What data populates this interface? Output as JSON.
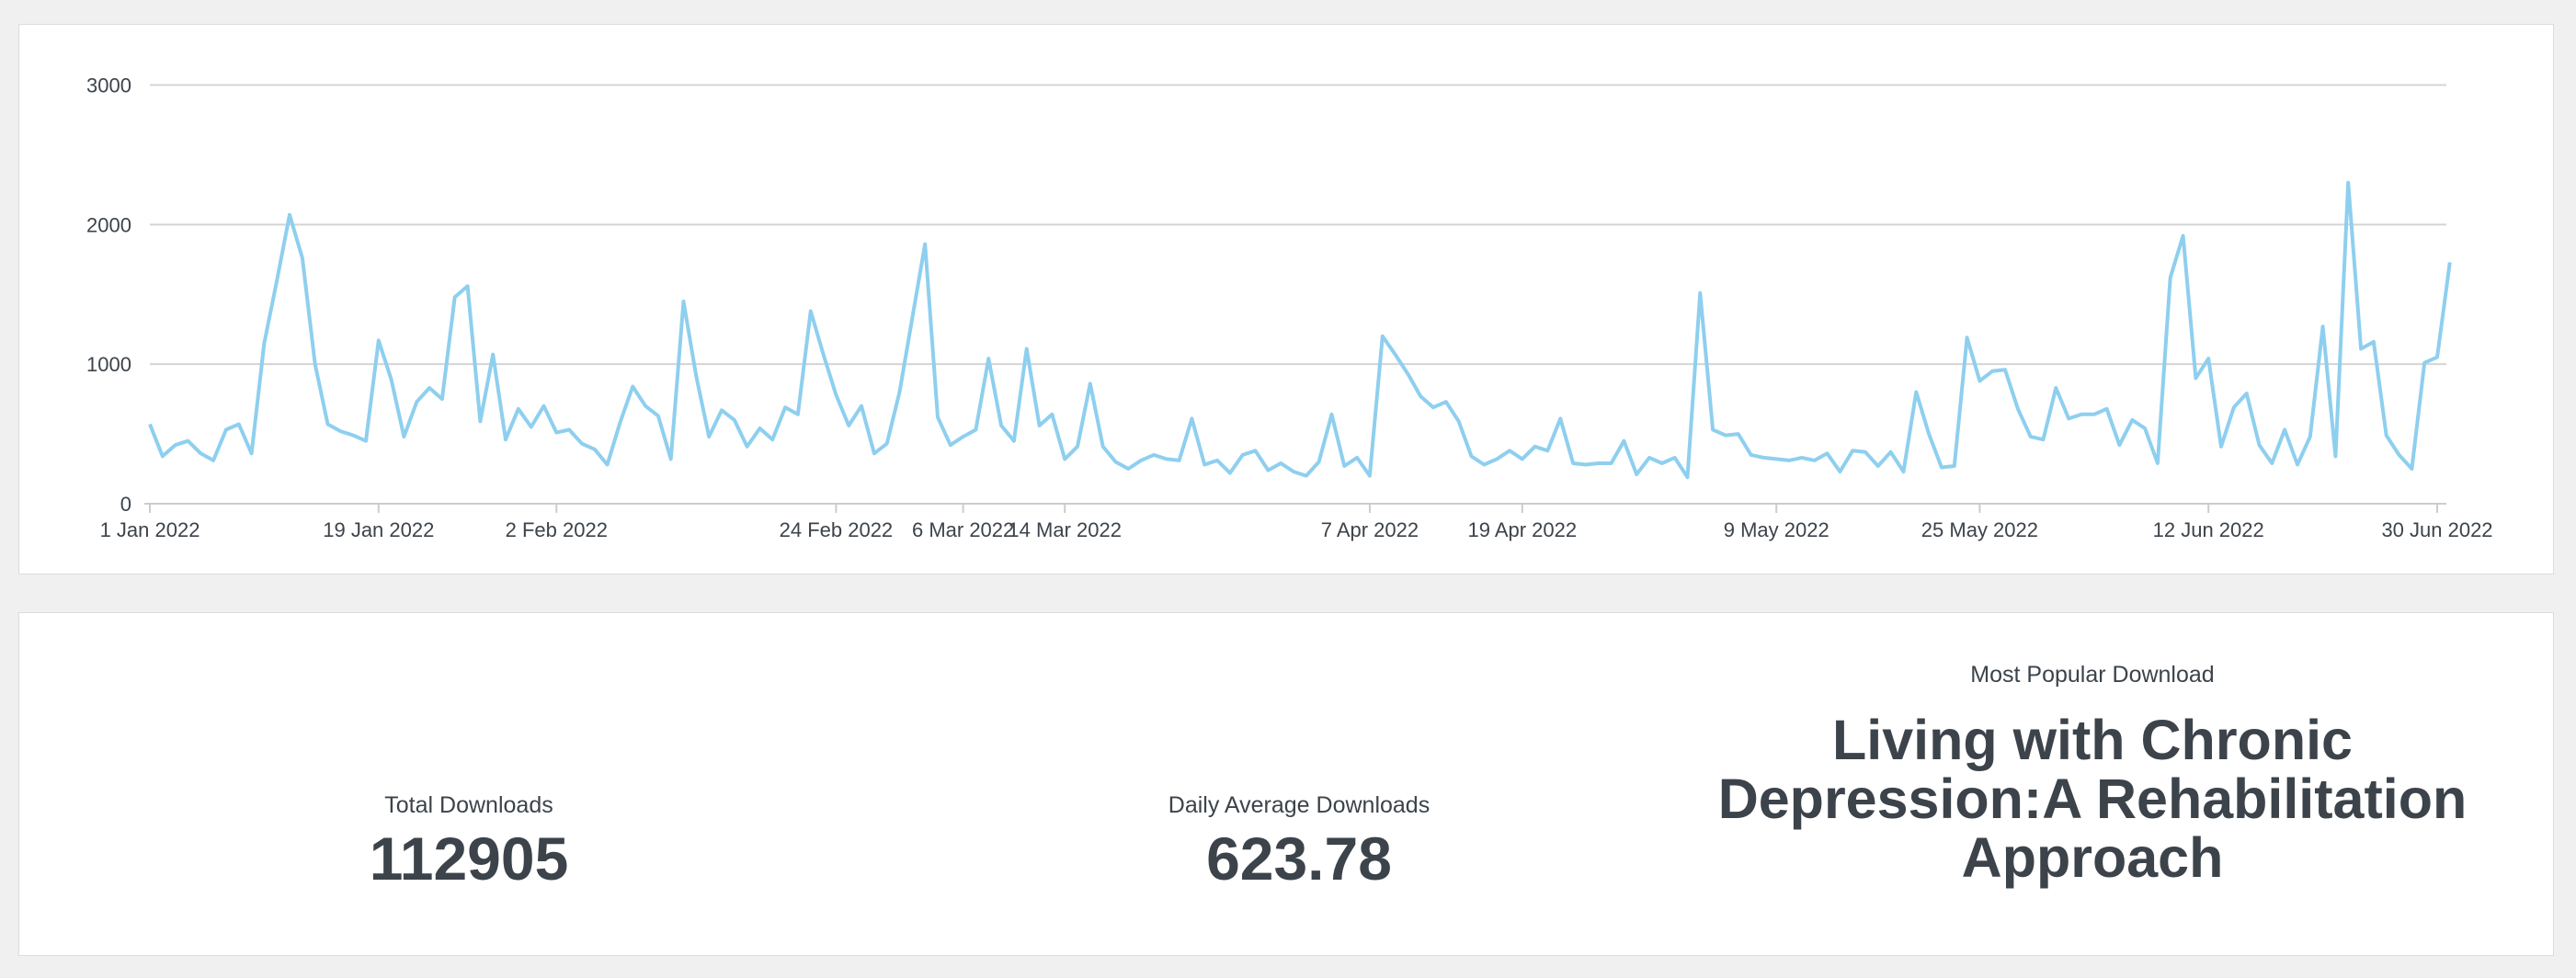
{
  "chart_data": {
    "type": "line",
    "title": "",
    "xlabel": "",
    "ylabel": "",
    "ylim": [
      0,
      3300
    ],
    "yticks": [
      0,
      1000,
      2000,
      3000
    ],
    "grid": true,
    "legend": "none",
    "line_color": "#8ecfef",
    "x_start": "2022-01-01",
    "x_end": "2022-06-30",
    "x_tick_labels": [
      {
        "date": "2022-01-01",
        "label": "1 Jan 2022"
      },
      {
        "date": "2022-01-19",
        "label": "19 Jan 2022"
      },
      {
        "date": "2022-02-02",
        "label": "2 Feb 2022"
      },
      {
        "date": "2022-02-24",
        "label": "24 Feb 2022"
      },
      {
        "date": "2022-03-06",
        "label": "6 Mar 2022"
      },
      {
        "date": "2022-03-14",
        "label": "14 Mar 2022"
      },
      {
        "date": "2022-04-07",
        "label": "7 Apr 2022"
      },
      {
        "date": "2022-04-19",
        "label": "19 Apr 2022"
      },
      {
        "date": "2022-05-09",
        "label": "9 May 2022"
      },
      {
        "date": "2022-05-25",
        "label": "25 May 2022"
      },
      {
        "date": "2022-06-12",
        "label": "12 Jun 2022"
      },
      {
        "date": "2022-06-30",
        "label": "30 Jun 2022"
      }
    ],
    "points": [
      [
        "2022-01-01",
        570
      ],
      [
        "2022-01-02",
        340
      ],
      [
        "2022-01-03",
        420
      ],
      [
        "2022-01-04",
        450
      ],
      [
        "2022-01-05",
        360
      ],
      [
        "2022-01-06",
        310
      ],
      [
        "2022-01-07",
        530
      ],
      [
        "2022-01-08",
        570
      ],
      [
        "2022-01-09",
        360
      ],
      [
        "2022-01-10",
        1150
      ],
      [
        "2022-01-11",
        1600
      ],
      [
        "2022-01-12",
        2070
      ],
      [
        "2022-01-13",
        1760
      ],
      [
        "2022-01-14",
        1000
      ],
      [
        "2022-01-15",
        570
      ],
      [
        "2022-01-16",
        520
      ],
      [
        "2022-01-17",
        490
      ],
      [
        "2022-01-18",
        450
      ],
      [
        "2022-01-19",
        1170
      ],
      [
        "2022-01-20",
        890
      ],
      [
        "2022-01-21",
        480
      ],
      [
        "2022-01-22",
        730
      ],
      [
        "2022-01-23",
        830
      ],
      [
        "2022-01-24",
        750
      ],
      [
        "2022-01-25",
        1480
      ],
      [
        "2022-01-26",
        1560
      ],
      [
        "2022-01-27",
        590
      ],
      [
        "2022-01-28",
        1070
      ],
      [
        "2022-01-29",
        460
      ],
      [
        "2022-01-30",
        680
      ],
      [
        "2022-01-31",
        550
      ],
      [
        "2022-02-01",
        700
      ],
      [
        "2022-02-02",
        510
      ],
      [
        "2022-02-03",
        530
      ],
      [
        "2022-02-04",
        430
      ],
      [
        "2022-02-05",
        390
      ],
      [
        "2022-02-06",
        280
      ],
      [
        "2022-02-07",
        580
      ],
      [
        "2022-02-08",
        840
      ],
      [
        "2022-02-09",
        700
      ],
      [
        "2022-02-10",
        630
      ],
      [
        "2022-02-11",
        320
      ],
      [
        "2022-02-12",
        1450
      ],
      [
        "2022-02-13",
        910
      ],
      [
        "2022-02-14",
        480
      ],
      [
        "2022-02-15",
        670
      ],
      [
        "2022-02-16",
        600
      ],
      [
        "2022-02-17",
        410
      ],
      [
        "2022-02-18",
        540
      ],
      [
        "2022-02-19",
        460
      ],
      [
        "2022-02-20",
        690
      ],
      [
        "2022-02-21",
        640
      ],
      [
        "2022-02-22",
        1380
      ],
      [
        "2022-02-23",
        1070
      ],
      [
        "2022-02-24",
        780
      ],
      [
        "2022-02-25",
        560
      ],
      [
        "2022-02-26",
        700
      ],
      [
        "2022-02-27",
        360
      ],
      [
        "2022-02-28",
        430
      ],
      [
        "2022-03-01",
        800
      ],
      [
        "2022-03-02",
        1330
      ],
      [
        "2022-03-03",
        1860
      ],
      [
        "2022-03-04",
        620
      ],
      [
        "2022-03-05",
        420
      ],
      [
        "2022-03-06",
        480
      ],
      [
        "2022-03-07",
        530
      ],
      [
        "2022-03-08",
        1040
      ],
      [
        "2022-03-09",
        560
      ],
      [
        "2022-03-10",
        450
      ],
      [
        "2022-03-11",
        1110
      ],
      [
        "2022-03-12",
        560
      ],
      [
        "2022-03-13",
        640
      ],
      [
        "2022-03-14",
        320
      ],
      [
        "2022-03-15",
        410
      ],
      [
        "2022-03-16",
        860
      ],
      [
        "2022-03-17",
        410
      ],
      [
        "2022-03-18",
        300
      ],
      [
        "2022-03-19",
        250
      ],
      [
        "2022-03-20",
        310
      ],
      [
        "2022-03-21",
        350
      ],
      [
        "2022-03-22",
        320
      ],
      [
        "2022-03-23",
        310
      ],
      [
        "2022-03-24",
        610
      ],
      [
        "2022-03-25",
        280
      ],
      [
        "2022-03-26",
        310
      ],
      [
        "2022-03-27",
        220
      ],
      [
        "2022-03-28",
        350
      ],
      [
        "2022-03-29",
        380
      ],
      [
        "2022-03-30",
        240
      ],
      [
        "2022-03-31",
        290
      ],
      [
        "2022-04-01",
        230
      ],
      [
        "2022-04-02",
        200
      ],
      [
        "2022-04-03",
        300
      ],
      [
        "2022-04-04",
        640
      ],
      [
        "2022-04-05",
        270
      ],
      [
        "2022-04-06",
        330
      ],
      [
        "2022-04-07",
        200
      ],
      [
        "2022-04-08",
        1200
      ],
      [
        "2022-04-09",
        1070
      ],
      [
        "2022-04-10",
        930
      ],
      [
        "2022-04-11",
        770
      ],
      [
        "2022-04-12",
        690
      ],
      [
        "2022-04-13",
        730
      ],
      [
        "2022-04-14",
        590
      ],
      [
        "2022-04-15",
        340
      ],
      [
        "2022-04-16",
        280
      ],
      [
        "2022-04-17",
        320
      ],
      [
        "2022-04-18",
        380
      ],
      [
        "2022-04-19",
        320
      ],
      [
        "2022-04-20",
        410
      ],
      [
        "2022-04-21",
        380
      ],
      [
        "2022-04-22",
        610
      ],
      [
        "2022-04-23",
        290
      ],
      [
        "2022-04-24",
        280
      ],
      [
        "2022-04-25",
        290
      ],
      [
        "2022-04-26",
        290
      ],
      [
        "2022-04-27",
        450
      ],
      [
        "2022-04-28",
        210
      ],
      [
        "2022-04-29",
        330
      ],
      [
        "2022-04-30",
        290
      ],
      [
        "2022-05-01",
        330
      ],
      [
        "2022-05-02",
        190
      ],
      [
        "2022-05-03",
        1510
      ],
      [
        "2022-05-04",
        530
      ],
      [
        "2022-05-05",
        490
      ],
      [
        "2022-05-06",
        500
      ],
      [
        "2022-05-07",
        350
      ],
      [
        "2022-05-08",
        330
      ],
      [
        "2022-05-09",
        320
      ],
      [
        "2022-05-10",
        310
      ],
      [
        "2022-05-11",
        330
      ],
      [
        "2022-05-12",
        310
      ],
      [
        "2022-05-13",
        360
      ],
      [
        "2022-05-14",
        230
      ],
      [
        "2022-05-15",
        380
      ],
      [
        "2022-05-16",
        370
      ],
      [
        "2022-05-17",
        270
      ],
      [
        "2022-05-18",
        370
      ],
      [
        "2022-05-19",
        230
      ],
      [
        "2022-05-20",
        800
      ],
      [
        "2022-05-21",
        500
      ],
      [
        "2022-05-22",
        260
      ],
      [
        "2022-05-23",
        270
      ],
      [
        "2022-05-24",
        1190
      ],
      [
        "2022-05-25",
        880
      ],
      [
        "2022-05-26",
        950
      ],
      [
        "2022-05-27",
        960
      ],
      [
        "2022-05-28",
        680
      ],
      [
        "2022-05-29",
        480
      ],
      [
        "2022-05-30",
        460
      ],
      [
        "2022-05-31",
        830
      ],
      [
        "2022-06-01",
        610
      ],
      [
        "2022-06-02",
        640
      ],
      [
        "2022-06-03",
        640
      ],
      [
        "2022-06-04",
        680
      ],
      [
        "2022-06-05",
        420
      ],
      [
        "2022-06-06",
        600
      ],
      [
        "2022-06-07",
        540
      ],
      [
        "2022-06-08",
        290
      ],
      [
        "2022-06-09",
        1620
      ],
      [
        "2022-06-10",
        1920
      ],
      [
        "2022-06-11",
        900
      ],
      [
        "2022-06-12",
        1040
      ],
      [
        "2022-06-13",
        410
      ],
      [
        "2022-06-14",
        690
      ],
      [
        "2022-06-15",
        790
      ],
      [
        "2022-06-16",
        420
      ],
      [
        "2022-06-17",
        290
      ],
      [
        "2022-06-18",
        530
      ],
      [
        "2022-06-19",
        280
      ],
      [
        "2022-06-20",
        480
      ],
      [
        "2022-06-21",
        1270
      ],
      [
        "2022-06-22",
        340
      ],
      [
        "2022-06-23",
        2300
      ],
      [
        "2022-06-24",
        1110
      ],
      [
        "2022-06-25",
        1160
      ],
      [
        "2022-06-26",
        490
      ],
      [
        "2022-06-27",
        350
      ],
      [
        "2022-06-28",
        250
      ],
      [
        "2022-06-29",
        1010
      ],
      [
        "2022-06-30",
        1050
      ],
      [
        "2022-07-01",
        1730
      ]
    ]
  },
  "stats": {
    "total_label": "Total Downloads",
    "total_value": "112905",
    "average_label": "Daily Average Downloads",
    "average_value": "623.78",
    "popular_label": "Most Popular Download",
    "popular_title": "Living with Chronic Depression:A Rehabilitation Approach"
  }
}
